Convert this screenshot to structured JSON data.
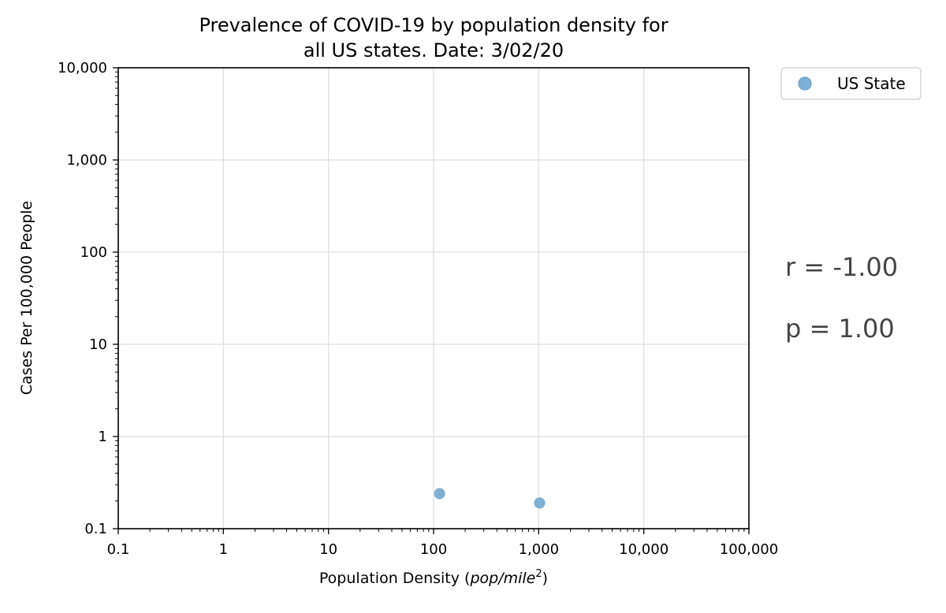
{
  "chart_data": {
    "type": "scatter",
    "title_lines": [
      "Prevalence of COVID-19 by population density for",
      "all US states. Date: 3/02/20"
    ],
    "xlabel_main": "Population Density (",
    "xlabel_unit": "pop/mile",
    "xlabel_sup": "2",
    "xlabel_close": ")",
    "ylabel": "Cases Per 100,000 People",
    "xscale": "log",
    "yscale": "log",
    "xlim": [
      0.1,
      100000
    ],
    "ylim": [
      0.1,
      10000
    ],
    "grid": true,
    "xticks": [
      {
        "value": 0.1,
        "label": "0.1"
      },
      {
        "value": 1,
        "label": "1"
      },
      {
        "value": 10,
        "label": "10"
      },
      {
        "value": 100,
        "label": "100"
      },
      {
        "value": 1000,
        "label": "1,000"
      },
      {
        "value": 10000,
        "label": "10,000"
      },
      {
        "value": 100000,
        "label": "100,000"
      }
    ],
    "yticks": [
      {
        "value": 0.1,
        "label": "0.1"
      },
      {
        "value": 1,
        "label": "1"
      },
      {
        "value": 10,
        "label": "10"
      },
      {
        "value": 100,
        "label": "100"
      },
      {
        "value": 1000,
        "label": "1,000"
      },
      {
        "value": 10000,
        "label": "10,000"
      }
    ],
    "series": [
      {
        "name": "US State",
        "color": "#7fb0d5",
        "edge_color": "#6a9fca",
        "points": [
          {
            "x": 114,
            "y": 0.24
          },
          {
            "x": 1020,
            "y": 0.19
          }
        ]
      }
    ],
    "legend_position": "upper-right outside",
    "stats": {
      "r": "r = -1.00",
      "p": "p = 1.00"
    }
  }
}
